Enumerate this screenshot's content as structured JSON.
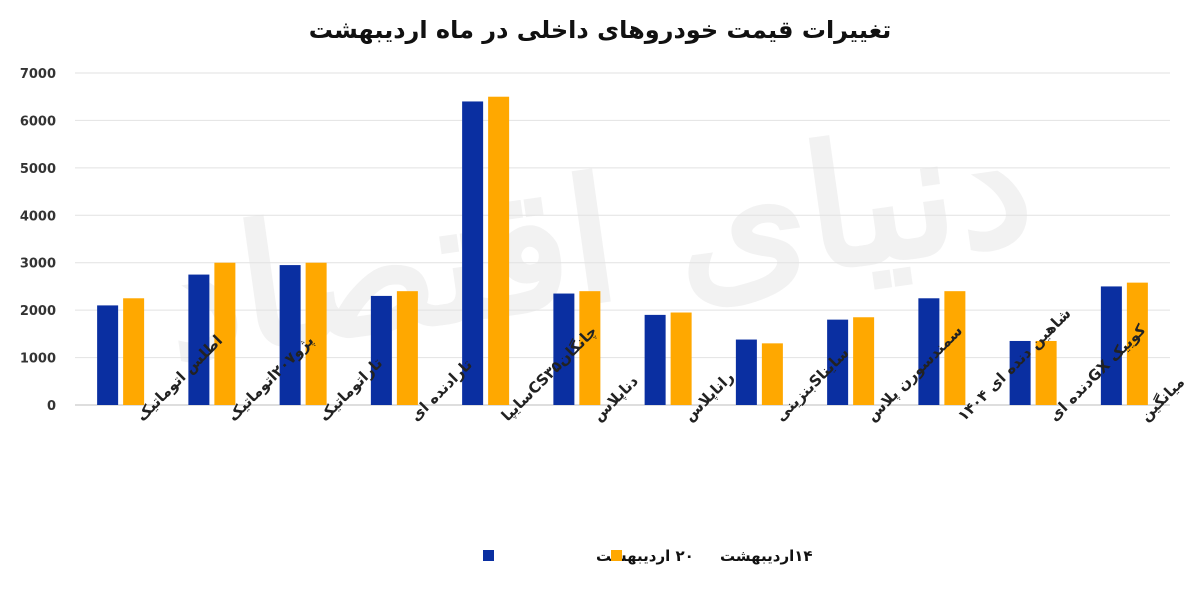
{
  "chart_data": {
    "type": "bar",
    "title": "تغییرات قیمت خودروهای داخلی در ماه اردیبهشت",
    "xlabel": "",
    "ylabel": "",
    "ylim": [
      0,
      7000
    ],
    "yticks": [
      0,
      1000,
      2000,
      3000,
      4000,
      5000,
      6000,
      7000
    ],
    "ytick_labels": [
      "0",
      "1000",
      "2000",
      "3000",
      "4000",
      "5000",
      "6000",
      "7000"
    ],
    "categories": [
      "اطلس اتوماتیک",
      "پژو۲۰۷اتوماتیک",
      "تاراتوماتیک",
      "تارادنده ای",
      "چانگان‌CS۳۵سایپا",
      "دناپلاس",
      "راناپلاس",
      "سایناSبنزینی",
      "سمندسورن پلاس",
      "شاهین دنده ای ۱۴۰۴",
      "کوییک GXدنده ای",
      "میانگین"
    ],
    "series": [
      {
        "name": "۲۰ اردیبهشت",
        "color": "#0a2fa1",
        "values": [
          2100,
          2750,
          2950,
          2300,
          6400,
          2350,
          1900,
          1380,
          1800,
          2250,
          1350,
          2500
        ]
      },
      {
        "name": "۱۴اردیبهشت",
        "color": "#ffa800",
        "values": [
          2250,
          3000,
          3000,
          2400,
          6500,
          2400,
          1950,
          1300,
          1850,
          2400,
          1350,
          2580
        ]
      }
    ],
    "grid": true,
    "legend_position": "bottom-center",
    "watermark": "دنیای اقتصاد"
  }
}
